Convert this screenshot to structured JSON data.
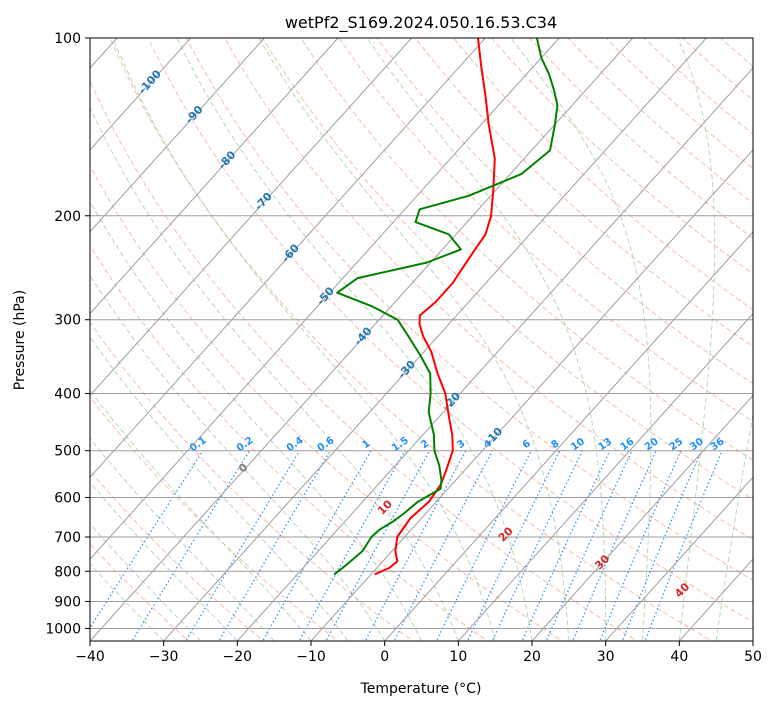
{
  "chart_data": {
    "type": "line",
    "diagram": "Skew-T log-P",
    "title": "wetPf2_S169.2024.050.16.53.C34",
    "xlabel": "Temperature (°C)",
    "ylabel": "Pressure (hPa)",
    "xlim": [
      -40,
      50
    ],
    "ylim": [
      1050,
      100
    ],
    "y_scale": "log",
    "skew": "isotherms slant to upper right",
    "grid": true,
    "xticks": [
      -40,
      -30,
      -20,
      -10,
      0,
      10,
      20,
      30,
      40,
      50
    ],
    "xtick_labels": [
      "−40",
      "−30",
      "−20",
      "−10",
      "0",
      "10",
      "20",
      "30",
      "40",
      "50"
    ],
    "yticks": [
      1000,
      900,
      800,
      700,
      600,
      500,
      400,
      300,
      200,
      100
    ],
    "ytick_labels": [
      "1000",
      "900",
      "800",
      "700",
      "600",
      "500",
      "400",
      "300",
      "200",
      "100"
    ],
    "series": [
      {
        "color": "#ff0000",
        "points": [
          {
            "p": 810,
            "t": -9.5
          },
          {
            "p": 790,
            "t": -8.3
          },
          {
            "p": 770,
            "t": -8.0
          },
          {
            "p": 740,
            "t": -9.5
          },
          {
            "p": 700,
            "t": -11.0
          },
          {
            "p": 650,
            "t": -11.5
          },
          {
            "p": 610,
            "t": -11.0
          },
          {
            "p": 570,
            "t": -11.5
          },
          {
            "p": 540,
            "t": -12.5
          },
          {
            "p": 500,
            "t": -14.0
          },
          {
            "p": 470,
            "t": -16.0
          },
          {
            "p": 440,
            "t": -18.5
          },
          {
            "p": 400,
            "t": -22.0
          },
          {
            "p": 370,
            "t": -25.5
          },
          {
            "p": 340,
            "t": -29.0
          },
          {
            "p": 320,
            "t": -32.0
          },
          {
            "p": 305,
            "t": -34.0
          },
          {
            "p": 295,
            "t": -35.0
          },
          {
            "p": 280,
            "t": -34.5
          },
          {
            "p": 260,
            "t": -34.5
          },
          {
            "p": 245,
            "t": -35.0
          },
          {
            "p": 230,
            "t": -35.5
          },
          {
            "p": 215,
            "t": -36.0
          },
          {
            "p": 200,
            "t": -37.5
          },
          {
            "p": 180,
            "t": -40.5
          },
          {
            "p": 160,
            "t": -44.0
          },
          {
            "p": 140,
            "t": -49.0
          },
          {
            "p": 125,
            "t": -53.0
          },
          {
            "p": 112,
            "t": -57.0
          },
          {
            "p": 100,
            "t": -61.0
          }
        ]
      },
      {
        "color": "#008000",
        "points": [
          {
            "p": 810,
            "t": -15.0
          },
          {
            "p": 780,
            "t": -14.5
          },
          {
            "p": 740,
            "t": -14.0
          },
          {
            "p": 700,
            "t": -14.5
          },
          {
            "p": 680,
            "t": -14.3
          },
          {
            "p": 660,
            "t": -13.5
          },
          {
            "p": 640,
            "t": -13.0
          },
          {
            "p": 610,
            "t": -12.5
          },
          {
            "p": 580,
            "t": -11.0
          },
          {
            "p": 560,
            "t": -12.0
          },
          {
            "p": 530,
            "t": -14.0
          },
          {
            "p": 500,
            "t": -16.5
          },
          {
            "p": 470,
            "t": -18.5
          },
          {
            "p": 430,
            "t": -22.0
          },
          {
            "p": 400,
            "t": -24.0
          },
          {
            "p": 370,
            "t": -26.5
          },
          {
            "p": 345,
            "t": -30.0
          },
          {
            "p": 320,
            "t": -34.0
          },
          {
            "p": 300,
            "t": -37.5
          },
          {
            "p": 285,
            "t": -42.5
          },
          {
            "p": 270,
            "t": -49.0
          },
          {
            "p": 255,
            "t": -48.0
          },
          {
            "p": 240,
            "t": -40.5
          },
          {
            "p": 228,
            "t": -37.5
          },
          {
            "p": 215,
            "t": -41.0
          },
          {
            "p": 205,
            "t": -47.0
          },
          {
            "p": 195,
            "t": -48.0
          },
          {
            "p": 185,
            "t": -43.0
          },
          {
            "p": 170,
            "t": -38.5
          },
          {
            "p": 155,
            "t": -37.5
          },
          {
            "p": 140,
            "t": -40.0
          },
          {
            "p": 130,
            "t": -42.0
          },
          {
            "p": 122,
            "t": -44.5
          },
          {
            "p": 115,
            "t": -47.0
          },
          {
            "p": 108,
            "t": -50.0
          },
          {
            "p": 100,
            "t": -53.0
          }
        ]
      }
    ],
    "isotherm_labels": [
      {
        "text": "-100",
        "t": -100,
        "p": 118
      },
      {
        "text": "-90",
        "t": -90,
        "p": 134
      },
      {
        "text": "-80",
        "t": -80,
        "p": 160
      },
      {
        "text": "-70",
        "t": -70,
        "p": 188
      },
      {
        "text": "-60",
        "t": -60,
        "p": 230
      },
      {
        "text": "-50",
        "t": -50,
        "p": 272
      },
      {
        "text": "-40",
        "t": -40,
        "p": 318
      },
      {
        "text": "-30",
        "t": -30,
        "p": 362
      },
      {
        "text": "-20",
        "t": -20,
        "p": 410
      },
      {
        "text": "-10",
        "t": -10,
        "p": 470
      }
    ],
    "mixing_ratio_labels": [
      "0.1",
      "0.2",
      "0.4",
      "0.6",
      "1",
      "1.5",
      "2",
      "3",
      "4",
      "6",
      "8",
      "10",
      "13",
      "16",
      "20",
      "25",
      "30",
      "36"
    ],
    "moist_adiabat_labels": [
      "0",
      "10",
      "20",
      "30",
      "40"
    ],
    "colors": {
      "temperature": "#ff0000",
      "dewpoint": "#008000",
      "isotherm": "#9e9e9e",
      "isobar": "#9e9e9e",
      "dry_adiabat": "#f5a58a",
      "moist_adiabat": "#9fd19f",
      "mixing_ratio": "#1f8fff",
      "isotherm_label": "#1f77b4",
      "moist_label_warm": "#d62728",
      "moist_label_zero": "#7f7f7f"
    }
  }
}
